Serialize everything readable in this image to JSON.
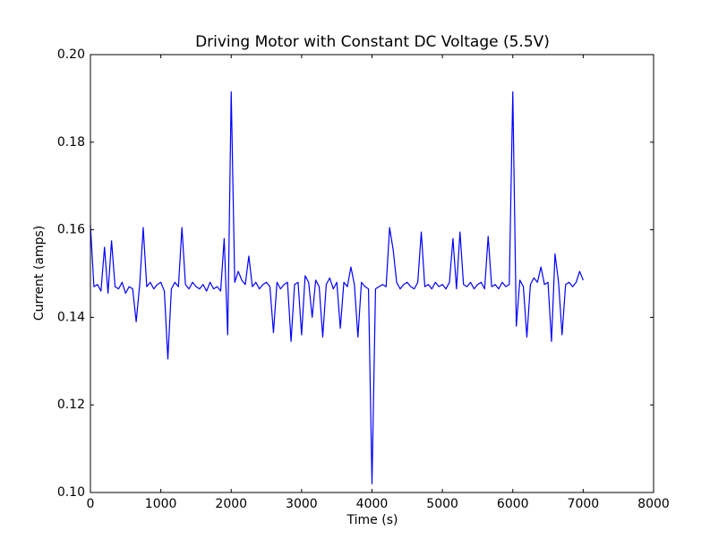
{
  "chart_data": {
    "type": "line",
    "title": "Driving Motor with Constant DC Voltage (5.5V)",
    "x_label": "Time (s)",
    "y_label": "Current (amps)",
    "color": "#0000ff",
    "xlim": [
      0,
      8000
    ],
    "ylim": [
      0.1,
      0.2
    ],
    "xticks": [
      0,
      1000,
      2000,
      3000,
      4000,
      5000,
      6000,
      7000,
      8000
    ],
    "yticks": [
      {
        "value": 0.1,
        "label": "0.10"
      },
      0.12,
      0.14,
      0.16,
      0.18,
      {
        "value": 0.2,
        "label": "0.20"
      }
    ],
    "x": [
      0,
      50,
      100,
      150,
      200,
      250,
      300,
      350,
      400,
      450,
      500,
      550,
      600,
      650,
      700,
      750,
      800,
      850,
      900,
      950,
      1000,
      1050,
      1100,
      1150,
      1200,
      1250,
      1300,
      1350,
      1400,
      1450,
      1500,
      1550,
      1600,
      1650,
      1700,
      1750,
      1800,
      1850,
      1900,
      1950,
      2000,
      2050,
      2100,
      2150,
      2200,
      2250,
      2300,
      2350,
      2400,
      2450,
      2500,
      2550,
      2600,
      2650,
      2700,
      2750,
      2800,
      2850,
      2900,
      2950,
      3000,
      3050,
      3100,
      3150,
      3200,
      3250,
      3300,
      3350,
      3400,
      3450,
      3500,
      3550,
      3600,
      3650,
      3700,
      3750,
      3800,
      3850,
      3900,
      3950,
      4000,
      4050,
      4100,
      4150,
      4200,
      4250,
      4300,
      4350,
      4400,
      4450,
      4500,
      4550,
      4600,
      4650,
      4700,
      4750,
      4800,
      4850,
      4900,
      4950,
      5000,
      5050,
      5100,
      5150,
      5200,
      5250,
      5300,
      5350,
      5400,
      5450,
      5500,
      5550,
      5600,
      5650,
      5700,
      5750,
      5800,
      5850,
      5900,
      5950,
      6000,
      6050,
      6100,
      6150,
      6200,
      6250,
      6300,
      6350,
      6400,
      6450,
      6500,
      6550,
      6600,
      6650,
      6700,
      6750,
      6800,
      6850,
      6900,
      6950,
      7000
    ],
    "values": [
      0.161,
      0.147,
      0.1475,
      0.146,
      0.156,
      0.1455,
      0.1575,
      0.147,
      0.1465,
      0.148,
      0.1455,
      0.147,
      0.1465,
      0.139,
      0.1475,
      0.1605,
      0.147,
      0.148,
      0.1465,
      0.1475,
      0.148,
      0.146,
      0.1305,
      0.1465,
      0.148,
      0.147,
      0.1605,
      0.1475,
      0.1465,
      0.148,
      0.147,
      0.1465,
      0.1475,
      0.146,
      0.148,
      0.1465,
      0.147,
      0.146,
      0.158,
      0.136,
      0.1915,
      0.148,
      0.1505,
      0.1485,
      0.1475,
      0.154,
      0.147,
      0.148,
      0.1465,
      0.1475,
      0.148,
      0.147,
      0.1365,
      0.148,
      0.1465,
      0.1475,
      0.148,
      0.1345,
      0.1475,
      0.148,
      0.136,
      0.1495,
      0.148,
      0.14,
      0.1485,
      0.147,
      0.1355,
      0.1475,
      0.149,
      0.1465,
      0.148,
      0.1375,
      0.148,
      0.147,
      0.1515,
      0.1475,
      0.1355,
      0.148,
      0.147,
      0.1465,
      0.102,
      0.1465,
      0.147,
      0.1475,
      0.147,
      0.1605,
      0.1555,
      0.148,
      0.1465,
      0.1475,
      0.148,
      0.147,
      0.1465,
      0.148,
      0.1595,
      0.147,
      0.1475,
      0.1465,
      0.148,
      0.147,
      0.1475,
      0.1465,
      0.148,
      0.158,
      0.1465,
      0.1595,
      0.1475,
      0.147,
      0.148,
      0.1465,
      0.1475,
      0.148,
      0.1465,
      0.1585,
      0.147,
      0.1475,
      0.1465,
      0.148,
      0.147,
      0.1475,
      0.1915,
      0.138,
      0.1485,
      0.147,
      0.1355,
      0.1475,
      0.149,
      0.148,
      0.1515,
      0.1475,
      0.148,
      0.1345,
      0.1545,
      0.148,
      0.136,
      0.1475,
      0.148,
      0.147,
      0.148,
      0.1505,
      0.1485
    ]
  }
}
